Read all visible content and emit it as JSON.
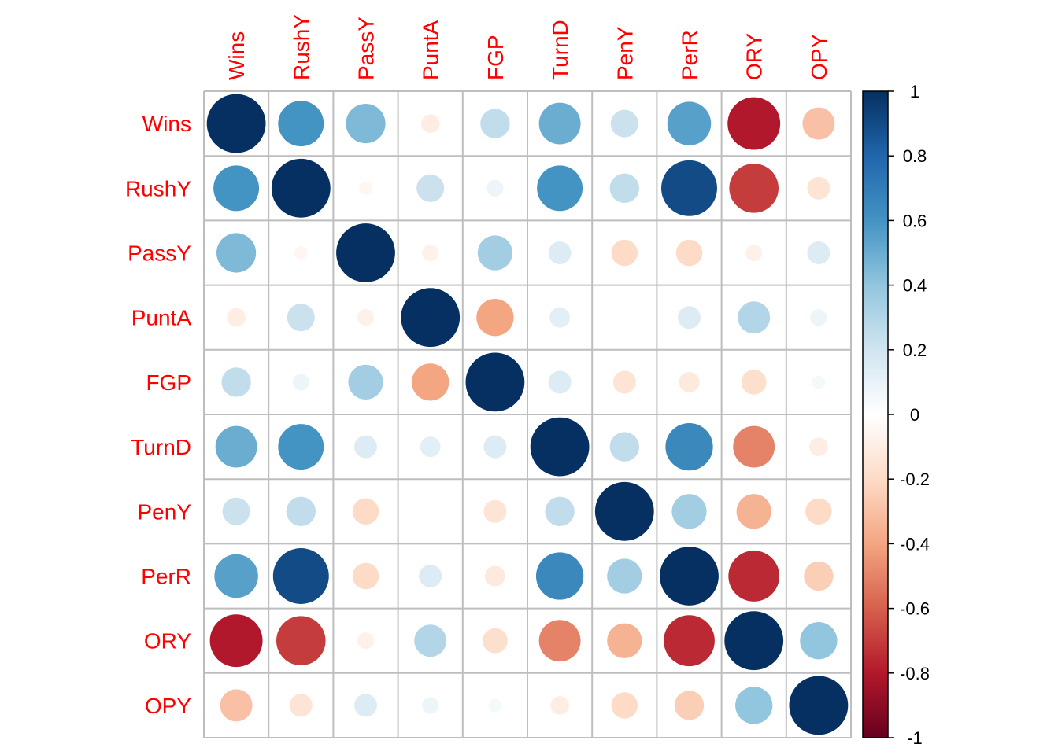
{
  "chart_data": {
    "type": "heatmap",
    "style": "correlation-circles",
    "title": "",
    "variables": [
      "Wins",
      "RushY",
      "PassY",
      "PuntA",
      "FGP",
      "TurnD",
      "PenY",
      "PerR",
      "ORY",
      "OPY"
    ],
    "matrix": [
      [
        1.0,
        0.6,
        0.45,
        -0.1,
        0.25,
        0.5,
        0.22,
        0.55,
        -0.8,
        -0.3
      ],
      [
        0.6,
        1.0,
        -0.05,
        0.22,
        0.08,
        0.6,
        0.25,
        0.9,
        -0.7,
        -0.15
      ],
      [
        0.45,
        -0.05,
        1.0,
        -0.08,
        0.35,
        0.15,
        -0.2,
        -0.2,
        -0.08,
        0.15
      ],
      [
        -0.1,
        0.22,
        -0.08,
        1.0,
        -0.4,
        0.12,
        0.0,
        0.15,
        0.3,
        0.08
      ],
      [
        0.25,
        0.08,
        0.35,
        -0.4,
        1.0,
        0.15,
        -0.15,
        -0.12,
        -0.18,
        0.05
      ],
      [
        0.5,
        0.6,
        0.15,
        0.12,
        0.15,
        1.0,
        0.25,
        0.65,
        -0.5,
        -0.1
      ],
      [
        0.22,
        0.25,
        -0.2,
        0.0,
        -0.15,
        0.25,
        1.0,
        0.35,
        -0.35,
        -0.2
      ],
      [
        0.55,
        0.9,
        -0.2,
        0.15,
        -0.12,
        0.65,
        0.35,
        1.0,
        -0.75,
        -0.25
      ],
      [
        -0.8,
        -0.7,
        -0.08,
        0.3,
        -0.18,
        -0.5,
        -0.35,
        -0.75,
        1.0,
        0.4
      ],
      [
        -0.3,
        -0.15,
        0.15,
        0.08,
        0.05,
        -0.1,
        -0.2,
        -0.25,
        0.4,
        1.0
      ]
    ],
    "color_scale": {
      "range": [
        -1,
        1
      ],
      "ticks": [
        1,
        0.8,
        0.6,
        0.4,
        0.2,
        0,
        -0.2,
        -0.4,
        -0.6,
        -0.8,
        -1
      ],
      "tick_labels": [
        "1",
        "0.8",
        "0.6",
        "0.4",
        "0.2",
        "0",
        "-0.2",
        "-0.4",
        "-0.6",
        "-0.8",
        "-1"
      ],
      "stops": [
        {
          "value": -1.0,
          "color": "#67001F"
        },
        {
          "value": -0.8,
          "color": "#B2182B"
        },
        {
          "value": -0.6,
          "color": "#D6604D"
        },
        {
          "value": -0.4,
          "color": "#F4A582"
        },
        {
          "value": -0.2,
          "color": "#FDDBC7"
        },
        {
          "value": 0.0,
          "color": "#FFFFFF"
        },
        {
          "value": 0.2,
          "color": "#D1E5F0"
        },
        {
          "value": 0.4,
          "color": "#92C5DE"
        },
        {
          "value": 0.6,
          "color": "#4393C3"
        },
        {
          "value": 0.8,
          "color": "#2166AC"
        },
        {
          "value": 1.0,
          "color": "#053061"
        }
      ]
    },
    "label_color": "#ff0000",
    "grid_color": "#bebebe",
    "legend_position": "right"
  }
}
